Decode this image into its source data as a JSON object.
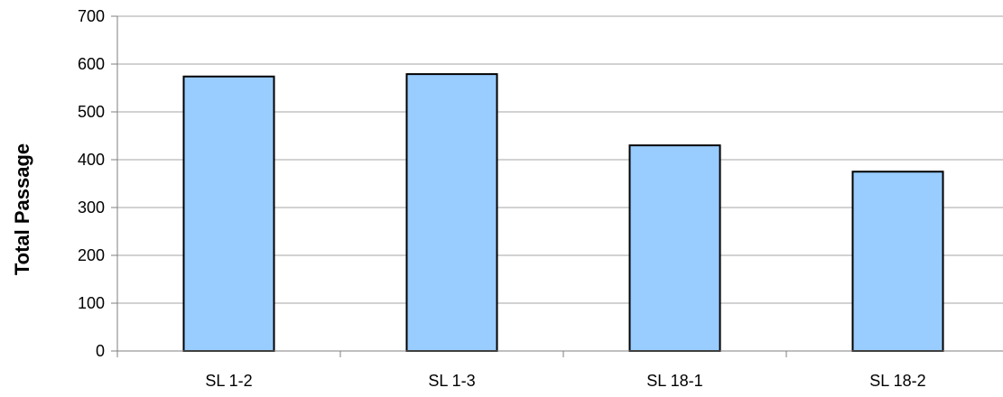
{
  "chart_data": {
    "type": "bar",
    "title": "",
    "xlabel": "",
    "ylabel": "Total Passage",
    "categories": [
      "SL 1-2",
      "SL 1-3",
      "SL 18-1",
      "SL 18-2"
    ],
    "values": [
      574,
      579,
      430,
      375
    ],
    "ylim": [
      0,
      700
    ],
    "yticks": [
      "0",
      "100",
      "200",
      "300",
      "400",
      "500",
      "600",
      "700"
    ],
    "grid": true,
    "legend": "none",
    "colors": {
      "bar_fill": "#99ccff",
      "bar_stroke": "#000000",
      "grid": "#a6a6a6",
      "axis": "#7f7f7f"
    }
  }
}
